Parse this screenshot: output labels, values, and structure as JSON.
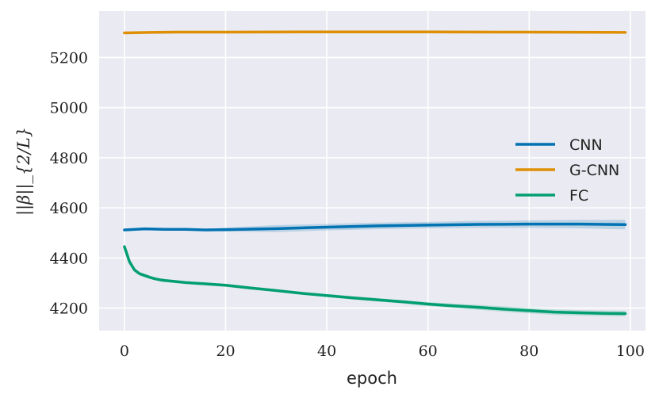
{
  "chart_data": {
    "type": "line",
    "xlabel": "epoch",
    "ylabel": "||β||_{2/L}",
    "xlim": [
      -5,
      103
    ],
    "ylim": [
      4110,
      5385
    ],
    "xticks": [
      0,
      20,
      40,
      60,
      80,
      100
    ],
    "yticks": [
      4200,
      4400,
      4600,
      4800,
      5000,
      5200
    ],
    "grid": true,
    "legend_position": "right",
    "background_color": "#eaeaf2",
    "series": [
      {
        "name": "CNN",
        "color": "#0173b2",
        "x": [
          0,
          4,
          8,
          12,
          16,
          20,
          30,
          40,
          50,
          60,
          70,
          80,
          90,
          99
        ],
        "y": [
          4512,
          4516,
          4514,
          4514,
          4512,
          4513,
          4517,
          4523,
          4528,
          4531,
          4534,
          4535,
          4535,
          4533
        ],
        "band_lower": [
          4508,
          4512,
          4510,
          4510,
          4508,
          4505,
          4503,
          4510,
          4515,
          4518,
          4520,
          4520,
          4518,
          4514
        ],
        "band_upper": [
          4516,
          4520,
          4518,
          4518,
          4516,
          4521,
          4531,
          4536,
          4541,
          4544,
          4548,
          4550,
          4552,
          4552
        ]
      },
      {
        "name": "G-CNN",
        "color": "#de8f05",
        "x": [
          0,
          5,
          10,
          20,
          40,
          60,
          80,
          99
        ],
        "y": [
          5298,
          5300,
          5301,
          5301,
          5302,
          5302,
          5301,
          5300
        ],
        "band_lower": [
          5296,
          5298,
          5299,
          5299,
          5300,
          5300,
          5299,
          5298
        ],
        "band_upper": [
          5300,
          5302,
          5303,
          5303,
          5304,
          5304,
          5303,
          5302
        ]
      },
      {
        "name": "FC",
        "color": "#029e73",
        "x": [
          0,
          1,
          2,
          3,
          4,
          5,
          6,
          7,
          8,
          10,
          12,
          15,
          18,
          20,
          25,
          30,
          35,
          40,
          45,
          50,
          55,
          60,
          65,
          70,
          75,
          80,
          85,
          90,
          95,
          99
        ],
        "y": [
          4445,
          4385,
          4352,
          4337,
          4330,
          4323,
          4317,
          4313,
          4310,
          4306,
          4302,
          4298,
          4294,
          4291,
          4280,
          4270,
          4259,
          4250,
          4241,
          4233,
          4225,
          4216,
          4209,
          4203,
          4196,
          4190,
          4184,
          4181,
          4179,
          4178
        ],
        "band_lower": [
          4435,
          4375,
          4344,
          4330,
          4323,
          4317,
          4311,
          4307,
          4304,
          4300,
          4296,
          4292,
          4288,
          4285,
          4274,
          4264,
          4253,
          4244,
          4234,
          4226,
          4218,
          4208,
          4200,
          4193,
          4185,
          4179,
          4173,
          4170,
          4168,
          4167
        ],
        "band_upper": [
          4455,
          4395,
          4360,
          4344,
          4337,
          4329,
          4323,
          4319,
          4316,
          4312,
          4308,
          4304,
          4300,
          4297,
          4286,
          4276,
          4265,
          4256,
          4248,
          4240,
          4232,
          4224,
          4218,
          4213,
          4207,
          4201,
          4195,
          4192,
          4190,
          4189
        ]
      }
    ]
  }
}
